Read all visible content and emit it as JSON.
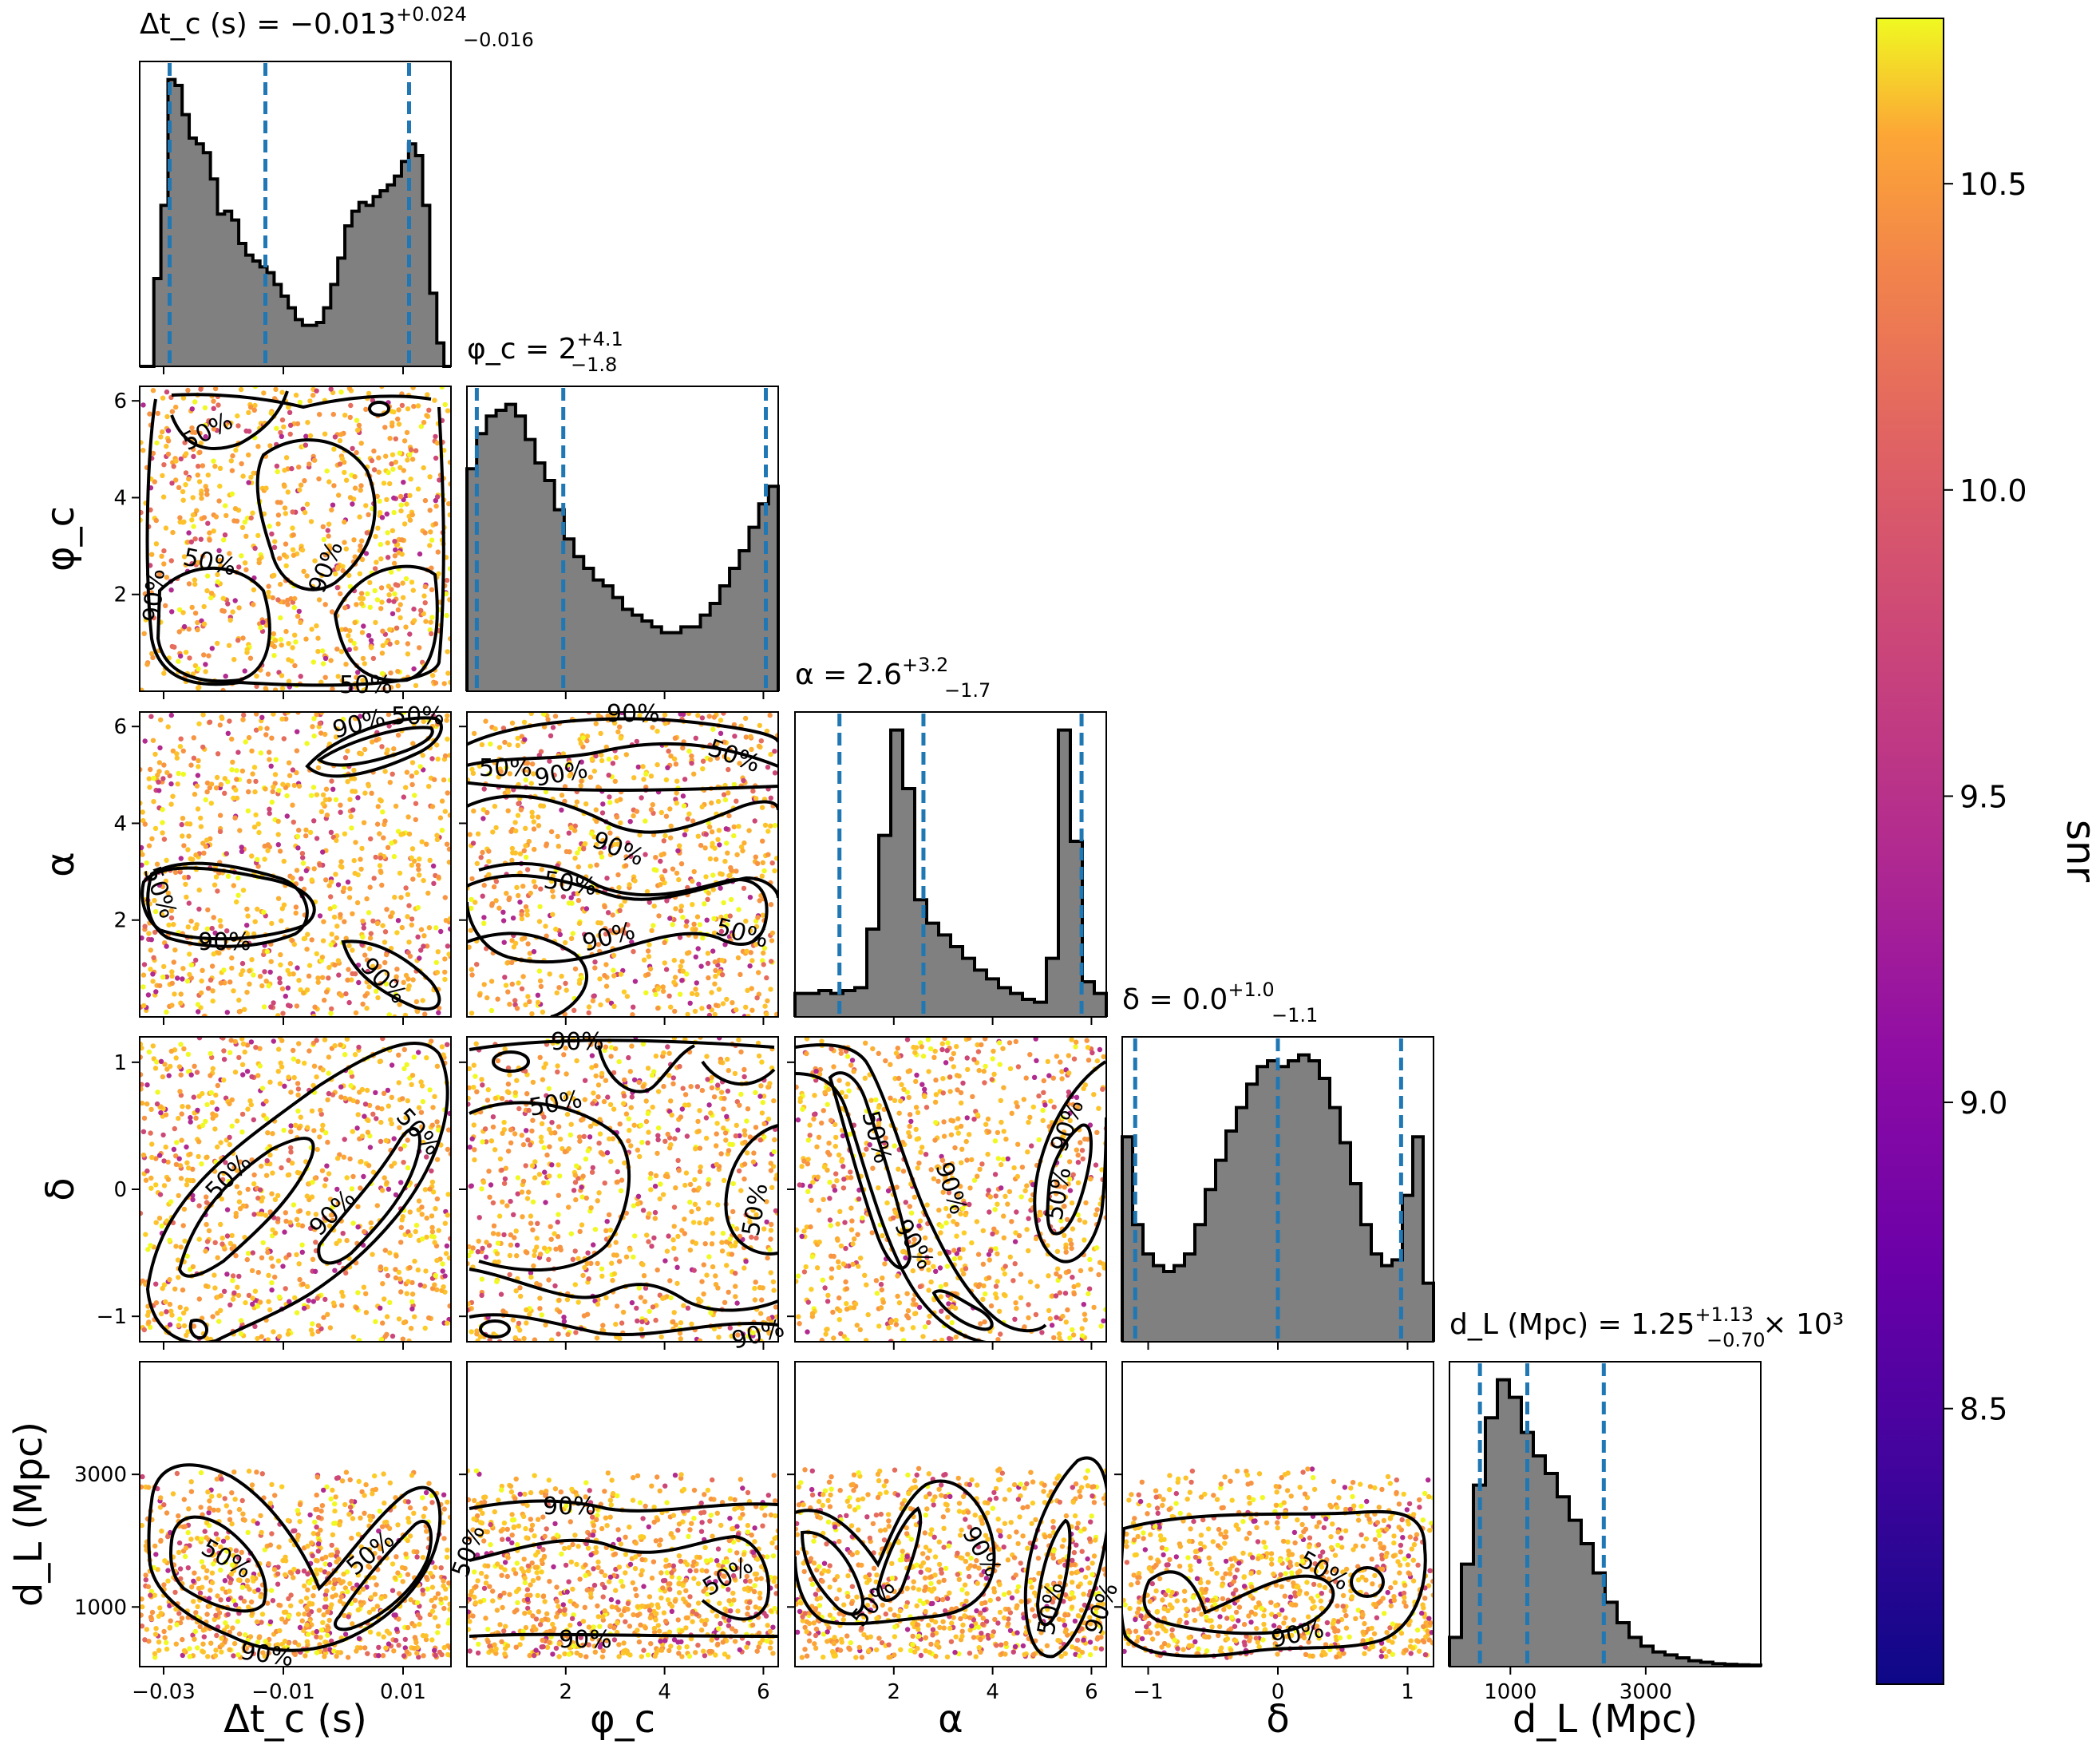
{
  "figure": {
    "colorbar_label": "snr",
    "colormap": "plasma",
    "hist_fill": "#808080",
    "marker_line": "#1f77b4",
    "contour_color": "#000000"
  },
  "chart_data": {
    "type": "corner",
    "parameters": [
      {
        "key": "tc",
        "axis_label": "Δt_c (s)",
        "title_main": "Δt_c (s) = −0.013",
        "title_sup": "+0.024",
        "title_sub": "−0.016",
        "title_suffix": "",
        "range": [
          -0.034,
          0.018
        ],
        "ticks": [
          -0.03,
          -0.01,
          0.01
        ],
        "tick_labels": [
          "−0.03",
          "−0.01",
          "0.01"
        ],
        "quantiles": [
          -0.029,
          -0.013,
          0.011
        ],
        "hist": [
          0,
          0,
          0.3,
          0.55,
          0.98,
          0.96,
          0.86,
          0.78,
          0.76,
          0.73,
          0.64,
          0.52,
          0.53,
          0.5,
          0.42,
          0.38,
          0.36,
          0.34,
          0.32,
          0.28,
          0.24,
          0.2,
          0.16,
          0.14,
          0.14,
          0.15,
          0.2,
          0.28,
          0.37,
          0.48,
          0.53,
          0.56,
          0.55,
          0.58,
          0.6,
          0.62,
          0.65,
          0.7,
          0.76,
          0.72,
          0.55,
          0.25,
          0.08,
          0
        ]
      },
      {
        "key": "phic",
        "axis_label": "φ_c",
        "title_main": "φ_c = 2",
        "title_sup": "+4.1",
        "title_sub": "−1.8",
        "title_suffix": "",
        "range": [
          0,
          6.3
        ],
        "ticks": [
          2,
          4,
          6
        ],
        "tick_labels": [
          "2",
          "4",
          "6"
        ],
        "quantiles": [
          0.2,
          1.95,
          6.05
        ],
        "hist": [
          0.76,
          0.88,
          0.94,
          0.96,
          0.98,
          0.94,
          0.86,
          0.78,
          0.72,
          0.62,
          0.52,
          0.46,
          0.42,
          0.38,
          0.36,
          0.32,
          0.28,
          0.26,
          0.24,
          0.22,
          0.2,
          0.2,
          0.22,
          0.22,
          0.26,
          0.3,
          0.36,
          0.42,
          0.48,
          0.56,
          0.64,
          0.7
        ]
      },
      {
        "key": "alpha",
        "axis_label": "α",
        "title_main": "α = 2.6",
        "title_sup": "+3.2",
        "title_sub": "−1.7",
        "title_suffix": "",
        "range": [
          0,
          6.3
        ],
        "ticks": [
          2,
          4,
          6
        ],
        "tick_labels": [
          "2",
          "4",
          "6"
        ],
        "quantiles": [
          0.9,
          2.6,
          5.8
        ],
        "hist": [
          0.08,
          0.08,
          0.09,
          0.08,
          0.09,
          0.1,
          0.3,
          0.62,
          0.98,
          0.78,
          0.4,
          0.32,
          0.28,
          0.24,
          0.2,
          0.16,
          0.13,
          0.1,
          0.08,
          0.06,
          0.05,
          0.2,
          0.98,
          0.6,
          0.12,
          0.08
        ]
      },
      {
        "key": "delta",
        "axis_label": "δ",
        "title_main": "δ = 0.0",
        "title_sup": "+1.0",
        "title_sub": "−1.1",
        "title_suffix": "",
        "range": [
          -1.2,
          1.2
        ],
        "ticks": [
          -1,
          0,
          1
        ],
        "tick_labels": [
          "−1",
          "0",
          "1"
        ],
        "quantiles": [
          -1.1,
          0.0,
          0.95
        ],
        "hist": [
          0.7,
          0.4,
          0.3,
          0.26,
          0.24,
          0.26,
          0.3,
          0.4,
          0.52,
          0.62,
          0.72,
          0.8,
          0.88,
          0.94,
          0.96,
          0.94,
          0.96,
          0.98,
          0.96,
          0.9,
          0.8,
          0.68,
          0.54,
          0.4,
          0.3,
          0.26,
          0.28,
          0.5,
          0.7,
          0.2
        ]
      },
      {
        "key": "dL",
        "axis_label": "d_L (Mpc)",
        "title_main": "d_L (Mpc) = 1.25",
        "title_sup": "+1.13",
        "title_sub": "−0.70",
        "title_suffix": "× 10³",
        "range": [
          100,
          4700
        ],
        "ticks": [
          1000,
          3000
        ],
        "tick_labels": [
          "1000",
          "3000"
        ],
        "quantiles": [
          550,
          1250,
          2380
        ],
        "hist": [
          0.1,
          0.35,
          0.62,
          0.85,
          0.98,
          0.92,
          0.8,
          0.72,
          0.66,
          0.58,
          0.5,
          0.42,
          0.32,
          0.22,
          0.15,
          0.1,
          0.07,
          0.05,
          0.04,
          0.03,
          0.02,
          0.015,
          0.01,
          0.008,
          0.006,
          0.005
        ]
      }
    ],
    "ytick_labels": {
      "phic": [
        "2",
        "4",
        "6"
      ],
      "alpha": [
        "2",
        "4",
        "6"
      ],
      "delta": [
        "−1",
        "0",
        "1"
      ],
      "dL": [
        "1000",
        "3000"
      ]
    },
    "contour_labels": [
      "50%",
      "90%"
    ],
    "colorbar": {
      "range": [
        8.05,
        10.77
      ],
      "ticks": [
        8.5,
        9.0,
        9.5,
        10.0,
        10.5
      ],
      "tick_labels": [
        "8.5",
        "9.0",
        "9.5",
        "10.0",
        "10.5"
      ]
    }
  }
}
